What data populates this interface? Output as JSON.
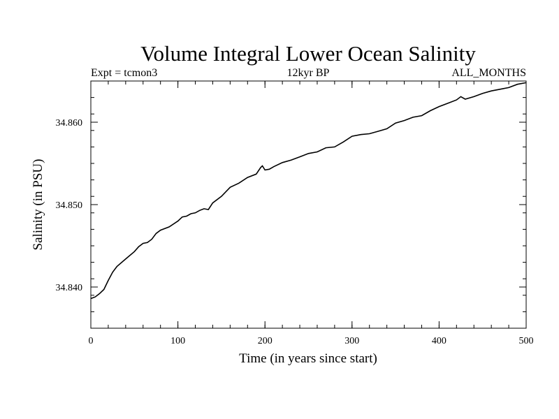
{
  "chart_data": {
    "type": "line",
    "title": "Volume Integral Lower Ocean Salinity",
    "subtitle_left": "Expt = tcmon3",
    "subtitle_center": "12kyr BP",
    "subtitle_right": "ALL_MONTHS",
    "xlabel": "Time (in years since start)",
    "ylabel": "Salinity (in PSU)",
    "xlim": [
      0,
      500
    ],
    "ylim": [
      34.835,
      34.865
    ],
    "xticks": [
      0,
      100,
      200,
      300,
      400,
      500
    ],
    "xtick_labels": [
      "0",
      "100",
      "200",
      "300",
      "400",
      "500"
    ],
    "yticks": [
      34.84,
      34.85,
      34.86
    ],
    "ytick_labels": [
      "34.840",
      "34.850",
      "34.860"
    ],
    "grid": false,
    "series": [
      {
        "color": "#000000",
        "x": [
          0,
          5,
          10,
          15,
          20,
          25,
          30,
          40,
          50,
          55,
          60,
          65,
          70,
          75,
          80,
          90,
          100,
          105,
          110,
          115,
          120,
          125,
          130,
          135,
          140,
          150,
          160,
          170,
          180,
          190,
          195,
          197,
          200,
          205,
          210,
          220,
          230,
          240,
          250,
          260,
          270,
          280,
          290,
          300,
          310,
          320,
          330,
          340,
          350,
          360,
          370,
          380,
          390,
          400,
          410,
          420,
          425,
          430,
          440,
          450,
          460,
          470,
          480,
          490,
          500
        ],
        "y": [
          34.8386,
          34.8388,
          34.8392,
          34.8397,
          34.8408,
          34.8418,
          34.8425,
          34.8434,
          34.8443,
          34.8449,
          34.8453,
          34.8454,
          34.8458,
          34.8465,
          34.8469,
          34.8473,
          34.848,
          34.8485,
          34.8486,
          34.8489,
          34.849,
          34.8493,
          34.8495,
          34.8494,
          34.8502,
          34.851,
          34.8521,
          34.8526,
          34.8533,
          34.8537,
          34.8545,
          34.8547,
          34.8542,
          34.8543,
          34.8546,
          34.8551,
          34.8554,
          34.8558,
          34.8562,
          34.8564,
          34.8569,
          34.857,
          34.8576,
          34.8583,
          34.8585,
          34.8586,
          34.8589,
          34.8592,
          34.8599,
          34.8602,
          34.8606,
          34.8608,
          34.8614,
          34.8619,
          34.8623,
          34.8627,
          34.8631,
          34.8628,
          34.8631,
          34.8635,
          34.8638,
          34.864,
          34.8642,
          34.8646,
          34.8648
        ]
      }
    ]
  }
}
